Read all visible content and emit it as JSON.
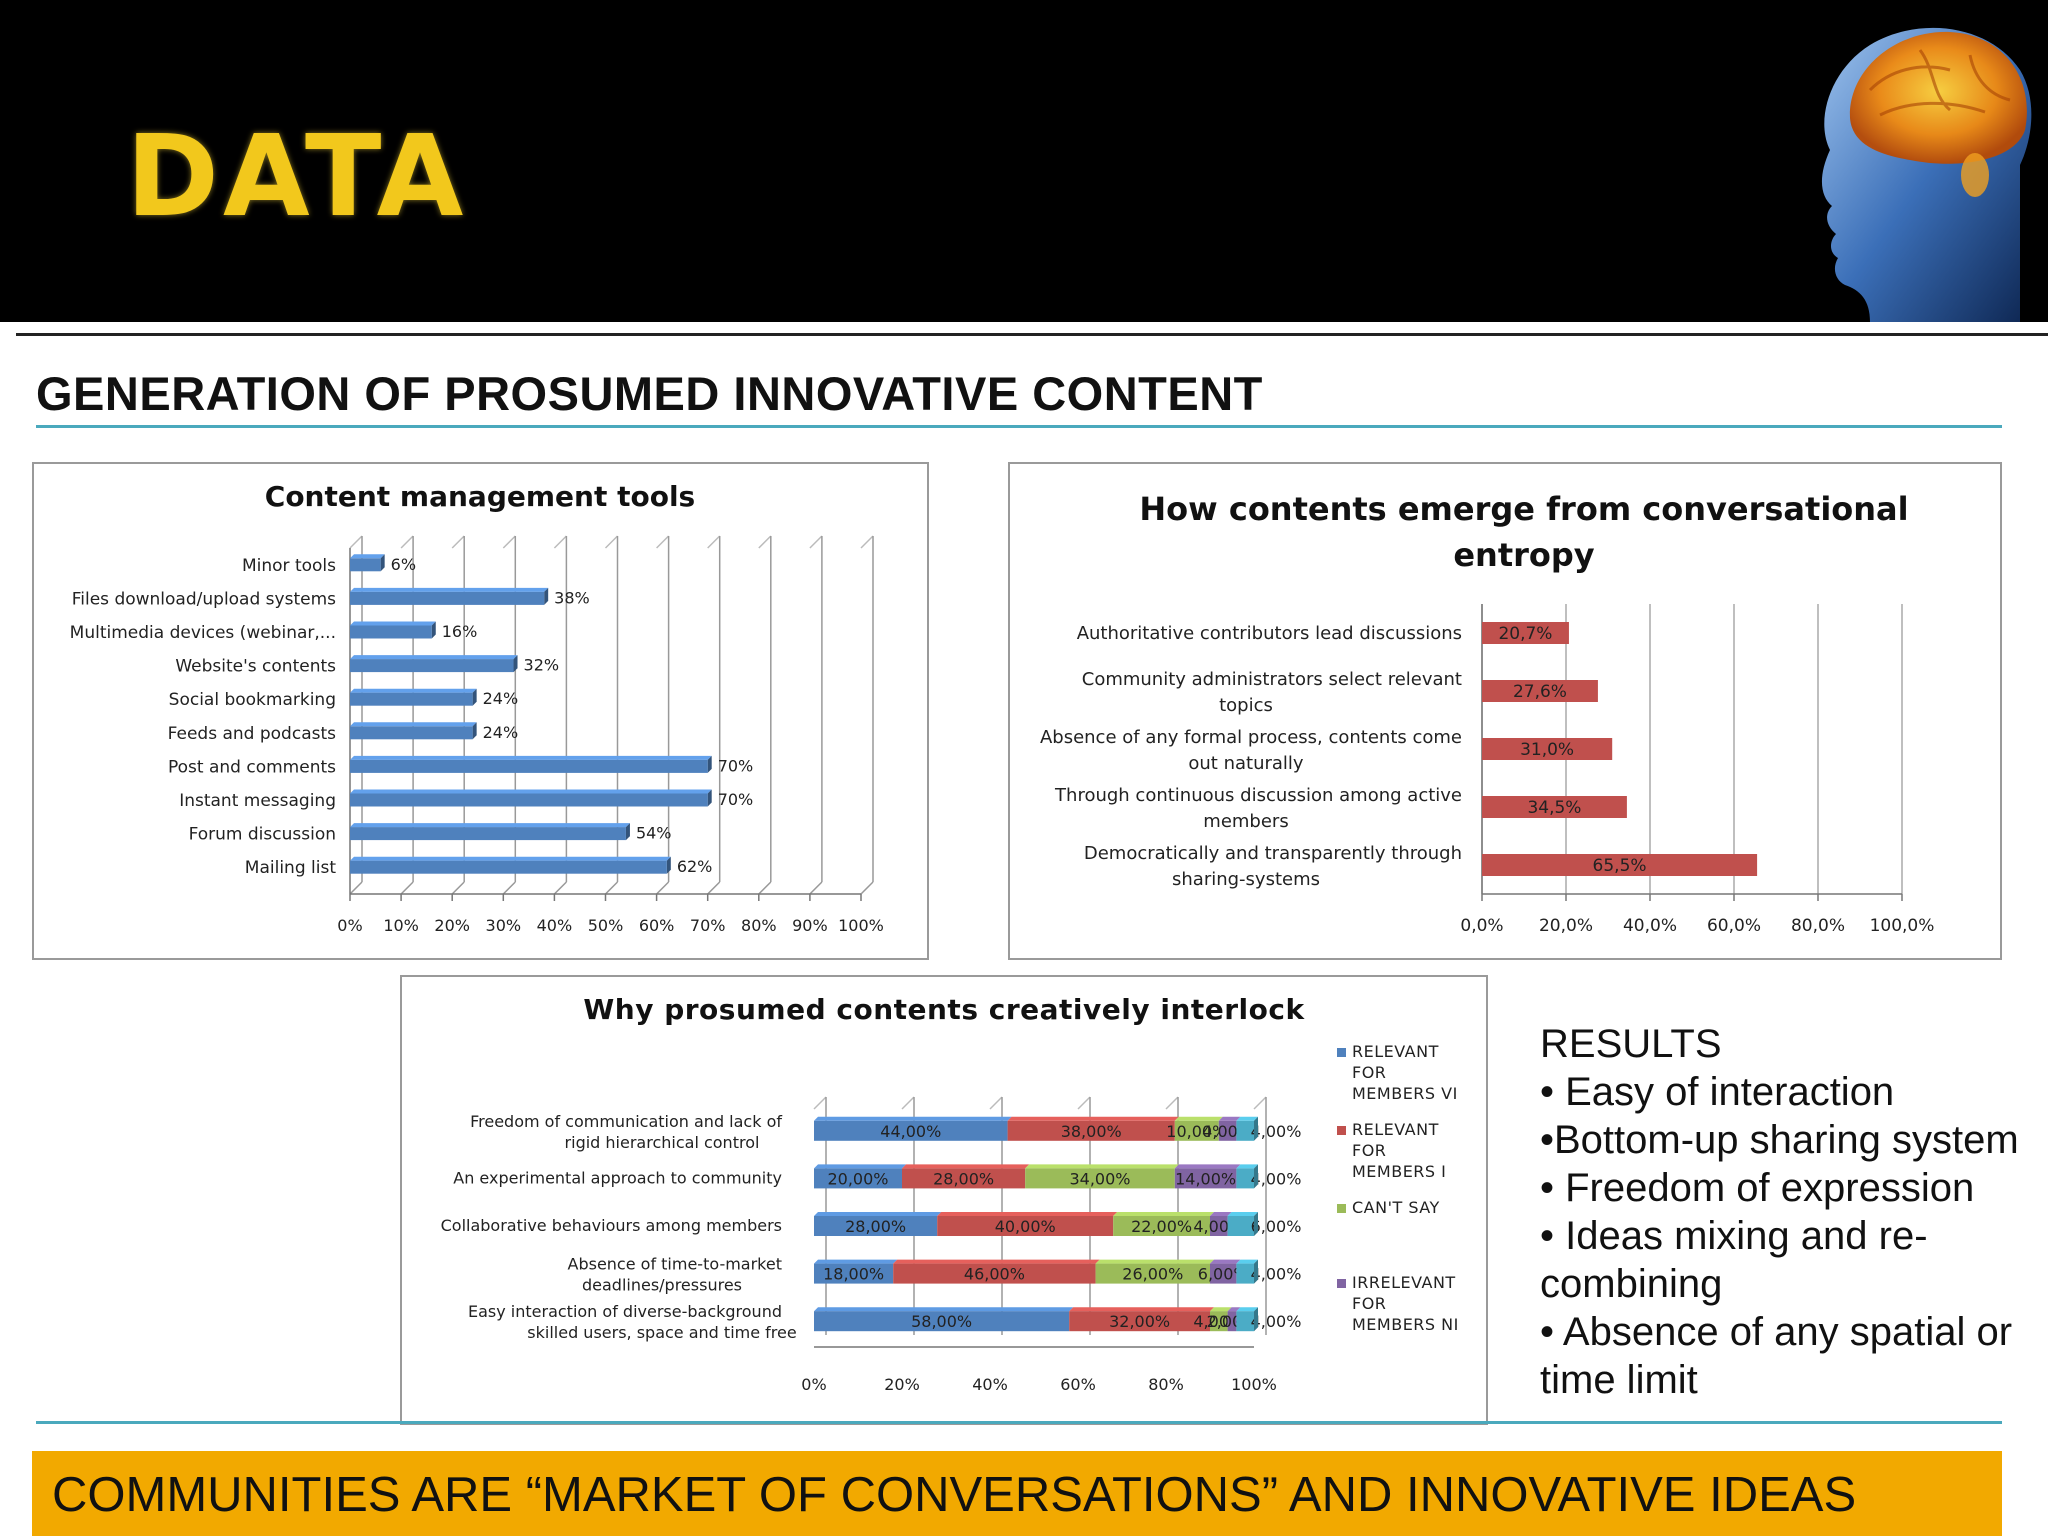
{
  "header": {
    "title": "DATA"
  },
  "section_title": "GENERATION OF PROSUMED INNOVATIVE CONTENT",
  "results": {
    "heading": "RESULTS",
    "items": [
      "• Easy of interaction",
      "•Bottom-up sharing system",
      "• Freedom of expression",
      "• Ideas mixing and re-combining",
      "• Absence of any spatial or time limit"
    ]
  },
  "footer": {
    "text": "COMMUNITIES ARE “MARKET OF CONVERSATIONS” AND INNOVATIVE IDEAS"
  },
  "colors": {
    "accent_yellow": "#f2c81c",
    "band_orange": "#f2a900",
    "rule_teal": "#4aa9bd"
  },
  "chart_data": [
    {
      "type": "bar",
      "orientation": "horizontal",
      "title": "Content management tools",
      "categories": [
        "Minor tools",
        "Files download/upload systems",
        "Multimedia devices (webinar,...",
        "Website's contents",
        "Social bookmarking",
        "Feeds and podcasts",
        "Post and comments",
        "Instant messaging",
        "Forum discussion",
        "Mailing list"
      ],
      "values": [
        6,
        38,
        16,
        32,
        24,
        24,
        70,
        70,
        54,
        62
      ],
      "value_labels": [
        "6%",
        "38%",
        "16%",
        "32%",
        "24%",
        "24%",
        "70%",
        "70%",
        "54%",
        "62%"
      ],
      "xlim": [
        0,
        100
      ],
      "x_ticks": [
        "0%",
        "10%",
        "20%",
        "30%",
        "40%",
        "50%",
        "60%",
        "70%",
        "80%",
        "90%",
        "100%"
      ],
      "grid": true,
      "color": "#4f81bd"
    },
    {
      "type": "bar",
      "orientation": "horizontal",
      "title": "How contents emerge from conversational entropy",
      "categories": [
        "Authoritative contributors lead discussions",
        "Community administrators select relevant topics",
        "Absence of any formal process, contents come out naturally",
        "Through continuous discussion among active members",
        "Democratically and transparently through sharing-systems"
      ],
      "values": [
        20.7,
        27.6,
        31.0,
        34.5,
        65.5
      ],
      "value_labels": [
        "20,7%",
        "27,6%",
        "31,0%",
        "34,5%",
        "65,5%"
      ],
      "xlim": [
        0,
        100
      ],
      "x_ticks": [
        "0,0%",
        "20,0%",
        "40,0%",
        "60,0%",
        "80,0%",
        "100,0%"
      ],
      "grid": true,
      "color": "#c0504d"
    },
    {
      "type": "bar",
      "orientation": "horizontal",
      "stacked": true,
      "title": "Why prosumed contents creatively interlock",
      "categories": [
        "Freedom of communication and lack of rigid hierarchical control",
        "An experimental approach to community",
        "Collaborative behaviours among members",
        "Absence of time-to-market deadlines/pressures",
        "Easy interaction of diverse-background skilled users, space and time free"
      ],
      "series": [
        {
          "name": "RELEVANT FOR MEMBERS VI",
          "values": [
            44,
            20,
            28,
            18,
            58
          ],
          "labels": [
            "44,00%",
            "20,00%",
            "28,00%",
            "18,00%",
            "58,00%"
          ],
          "color": "#4f81bd"
        },
        {
          "name": "RELEVANT FOR MEMBERS I",
          "values": [
            38,
            28,
            40,
            46,
            32
          ],
          "labels": [
            "38,00%",
            "28,00%",
            "40,00%",
            "46,00%",
            "32,00%"
          ],
          "color": "#c0504d"
        },
        {
          "name": "CAN'T SAY",
          "values": [
            10,
            34,
            22,
            26,
            4
          ],
          "labels": [
            "10,00%",
            "34,00%",
            "22,00%",
            "26,00%",
            "4,00%"
          ],
          "color": "#9bbb59"
        },
        {
          "name": "IRRELEVANT FOR MEMBERS NI",
          "values": [
            4,
            14,
            4,
            6,
            2
          ],
          "labels": [
            "4,00%",
            "14,00%",
            "4,00%",
            "6,00%",
            "2,00%"
          ],
          "color": "#8064a2"
        },
        {
          "name": "",
          "values": [
            4,
            4,
            6,
            4,
            4
          ],
          "labels": [
            "4,00%",
            "4,00%",
            "6,00%",
            "4,00%",
            "4,00%"
          ],
          "color": "#4bacc6"
        }
      ],
      "xlim": [
        0,
        100
      ],
      "x_ticks": [
        "0%",
        "20%",
        "40%",
        "60%",
        "80%",
        "100%"
      ],
      "legend_position": "right",
      "grid": true
    }
  ]
}
